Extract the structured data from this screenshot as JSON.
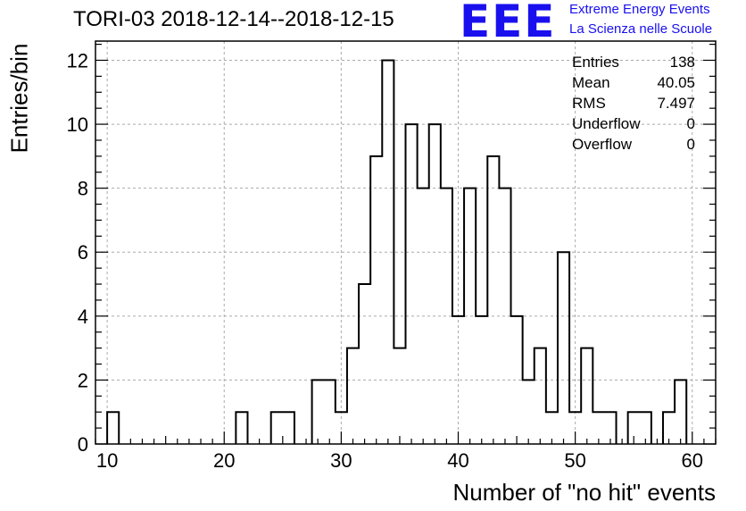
{
  "title": "TORI-03 2018-12-14--2018-12-15",
  "logo": {
    "mark": "EEE",
    "line1": "Extreme Energy Events",
    "line2": "La Scienza nelle Scuole",
    "color": "#1a10ee"
  },
  "stats": [
    {
      "label": "Entries",
      "value": "138"
    },
    {
      "label": "Mean",
      "value": "40.05"
    },
    {
      "label": "RMS",
      "value": "7.497"
    },
    {
      "label": "Underflow",
      "value": "0"
    },
    {
      "label": "Overflow",
      "value": "0"
    }
  ],
  "chart_data": {
    "type": "bar",
    "xlabel": "Number of \"no hit\" events",
    "ylabel": "Entries/bin",
    "xlim": [
      9,
      62
    ],
    "ylim": [
      0,
      12.6
    ],
    "bin_width": 1,
    "x_ticks": [
      10,
      20,
      30,
      40,
      50,
      60
    ],
    "y_ticks": [
      0,
      2,
      4,
      6,
      8,
      10,
      12
    ],
    "grid": true,
    "bins": [
      {
        "x": 10.5,
        "y": 1
      },
      {
        "x": 21.5,
        "y": 1
      },
      {
        "x": 24.5,
        "y": 1
      },
      {
        "x": 25.5,
        "y": 1
      },
      {
        "x": 28,
        "y": 2
      },
      {
        "x": 29,
        "y": 2
      },
      {
        "x": 30,
        "y": 1
      },
      {
        "x": 31,
        "y": 3
      },
      {
        "x": 32,
        "y": 5
      },
      {
        "x": 33,
        "y": 9
      },
      {
        "x": 34,
        "y": 12
      },
      {
        "x": 35,
        "y": 3
      },
      {
        "x": 36,
        "y": 10
      },
      {
        "x": 37,
        "y": 8
      },
      {
        "x": 38,
        "y": 10
      },
      {
        "x": 39,
        "y": 8
      },
      {
        "x": 40,
        "y": 4
      },
      {
        "x": 41,
        "y": 8
      },
      {
        "x": 42,
        "y": 4
      },
      {
        "x": 43,
        "y": 9
      },
      {
        "x": 44,
        "y": 8
      },
      {
        "x": 45,
        "y": 4
      },
      {
        "x": 46,
        "y": 2
      },
      {
        "x": 47,
        "y": 3
      },
      {
        "x": 48,
        "y": 1
      },
      {
        "x": 49,
        "y": 6
      },
      {
        "x": 50,
        "y": 1
      },
      {
        "x": 51,
        "y": 3
      },
      {
        "x": 52,
        "y": 1
      },
      {
        "x": 53,
        "y": 1
      },
      {
        "x": 55,
        "y": 1
      },
      {
        "x": 56,
        "y": 1
      },
      {
        "x": 58,
        "y": 1
      },
      {
        "x": 59,
        "y": 2
      }
    ]
  }
}
